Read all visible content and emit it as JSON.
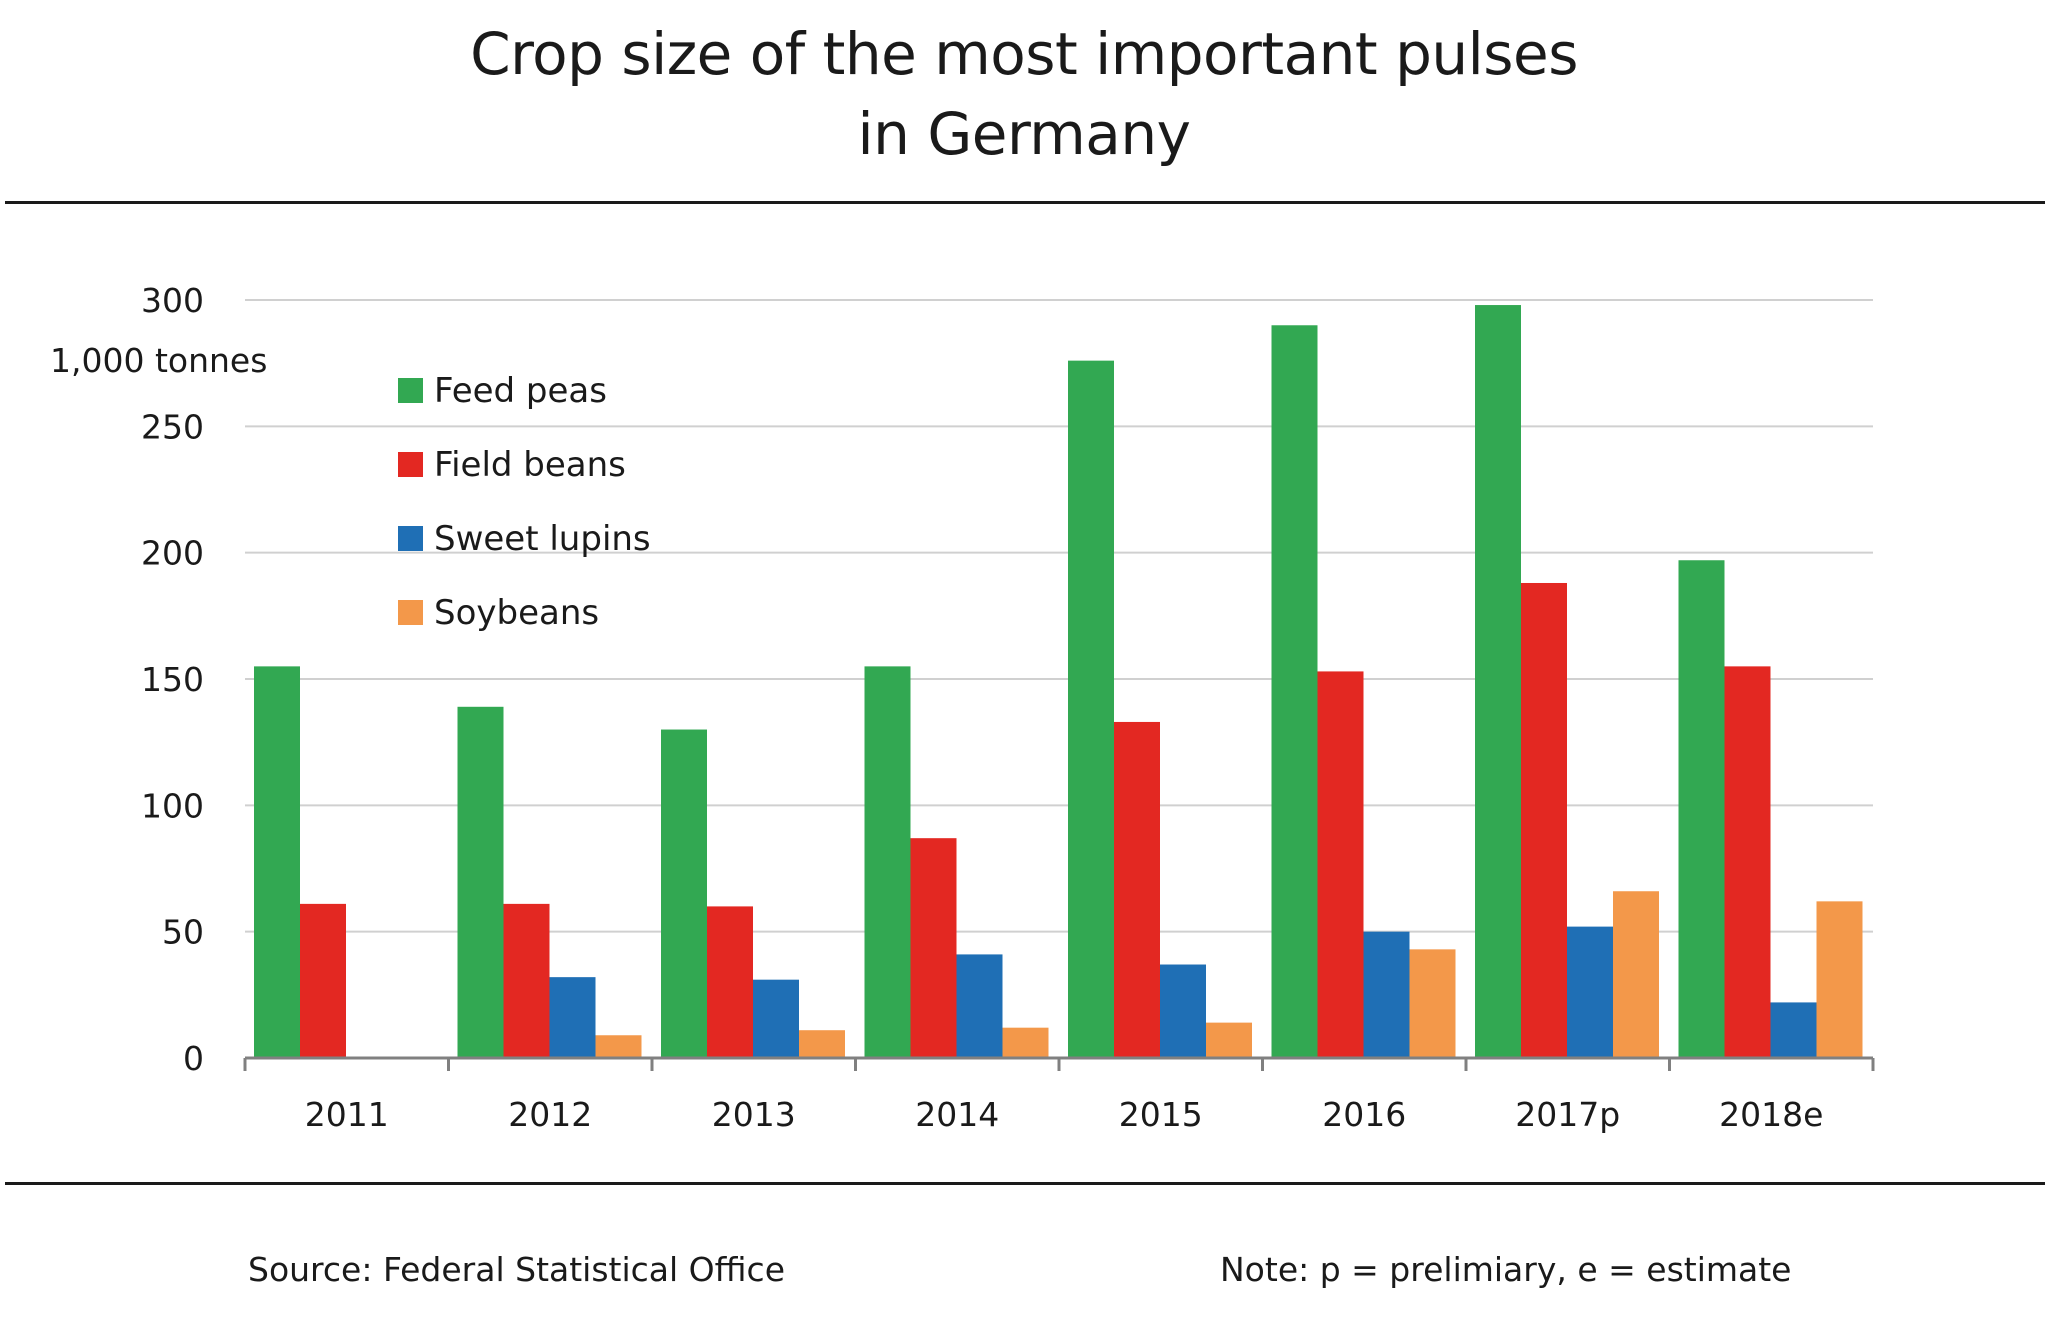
{
  "header": {
    "title_line1": "Crop size of the most important pulses",
    "title_line2": "in Germany"
  },
  "footer": {
    "source": "Source: Federal Statistical Office",
    "note": "Note: p = prelimiary, e = estimate"
  },
  "chart_data": {
    "type": "bar",
    "title": "Crop size of the most important pulses in Germany",
    "xlabel": "",
    "ylabel": "1,000  tonnes",
    "ylim": [
      0,
      300
    ],
    "yticks": [
      0,
      50,
      100,
      150,
      200,
      250,
      300
    ],
    "grid": true,
    "legend_position": "top-left",
    "categories": [
      "2011",
      "2012",
      "2013",
      "2014",
      "2015",
      "2016",
      "2017p",
      "2018e"
    ],
    "series": [
      {
        "name": "Feed peas",
        "color": "#32a852",
        "values": [
          155,
          139,
          130,
          155,
          276,
          290,
          298,
          197
        ]
      },
      {
        "name": "Field beans",
        "color": "#e32822",
        "values": [
          61,
          61,
          60,
          87,
          133,
          153,
          188,
          155
        ]
      },
      {
        "name": "Sweet lupins",
        "color": "#1f6fb5",
        "values": [
          0,
          32,
          31,
          41,
          37,
          50,
          52,
          22
        ]
      },
      {
        "name": "Soybeans",
        "color": "#f3984a",
        "values": [
          0,
          9,
          11,
          12,
          14,
          43,
          66,
          62
        ]
      }
    ]
  }
}
